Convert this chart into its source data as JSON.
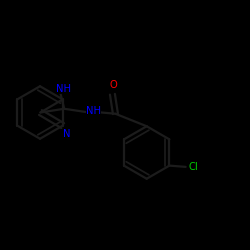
{
  "background_color": "#000000",
  "bond_color": "#111111",
  "heteroatom_color": "#0000ff",
  "oxygen_color": "#ff0000",
  "chlorine_color": "#00cc00",
  "line_width": 1.6,
  "figsize": [
    2.5,
    2.5
  ],
  "dpi": 100,
  "xlim": [
    0,
    10
  ],
  "ylim": [
    0,
    10
  ]
}
